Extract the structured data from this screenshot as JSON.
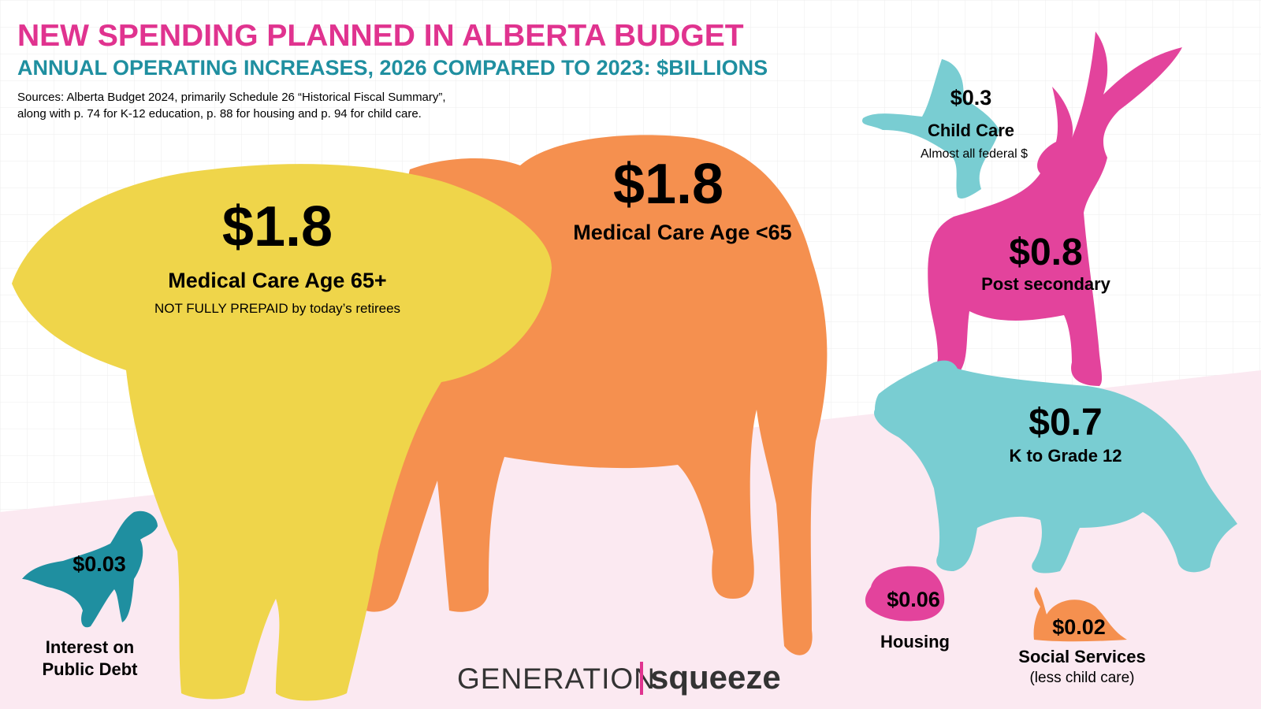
{
  "header": {
    "title": "NEW SPENDING PLANNED IN ALBERTA BUDGET",
    "subtitle": "ANNUAL OPERATING INCREASES, 2026 COMPARED TO 2023: $BILLIONS",
    "sources": [
      "Sources: Alberta Budget 2024, primarily Schedule 26 “Historical Fiscal Summary”,",
      "along with p. 74 for K-12 education, p. 88 for housing and p. 94 for child care."
    ]
  },
  "items": [
    {
      "value": "$1.8",
      "label": [
        "Medical Care Age 65+"
      ],
      "note": "NOT FULLY PREPAID by today’s retirees"
    },
    {
      "value": "$1.8",
      "label": [
        "Medical Care Age <65"
      ]
    },
    {
      "value": "$0.3",
      "label": [
        "Child Care"
      ],
      "note": "Almost all federal $"
    },
    {
      "value": "$0.8",
      "label": [
        "Post secondary"
      ]
    },
    {
      "value": "$0.7",
      "label": [
        "K to Grade 12"
      ]
    },
    {
      "value": "$0.03",
      "label": [
        "Interest on",
        "Public Debt"
      ]
    },
    {
      "value": "$0.06",
      "label": [
        "Housing"
      ]
    },
    {
      "value": "$0.02",
      "label": [
        "Social Services"
      ],
      "note": "(less child care)"
    }
  ],
  "logo": {
    "left": "GENERATION",
    "right": "squeeze"
  }
}
